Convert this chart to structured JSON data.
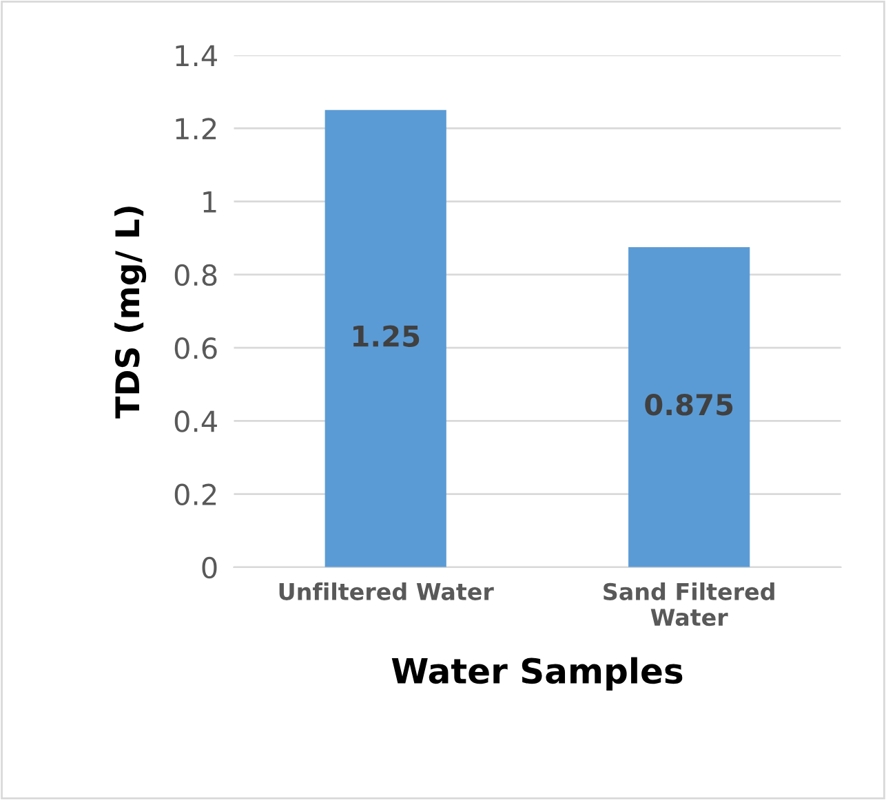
{
  "chart_data": {
    "type": "bar",
    "categories": [
      "Unfiltered Water",
      "Sand Filtered Water"
    ],
    "values": [
      1.25,
      0.875
    ],
    "color": "#5b9bd5",
    "xlabel": "Water Samples",
    "ylabel": "TDS (mg/ L)",
    "ylim": [
      0,
      1.4
    ],
    "yticks": [
      0,
      {
        "value": 0.2,
        "label": "0.2"
      },
      {
        "value": 0.4,
        "label": "0.4"
      },
      {
        "value": 0.6,
        "label": "0.6"
      },
      {
        "value": 0.8,
        "label": "0.8"
      },
      1,
      {
        "value": 1.2,
        "label": "1.2"
      },
      {
        "value": 1.4,
        "label": "1.4"
      }
    ],
    "grid": "y",
    "data_labels": true,
    "legend": false
  }
}
